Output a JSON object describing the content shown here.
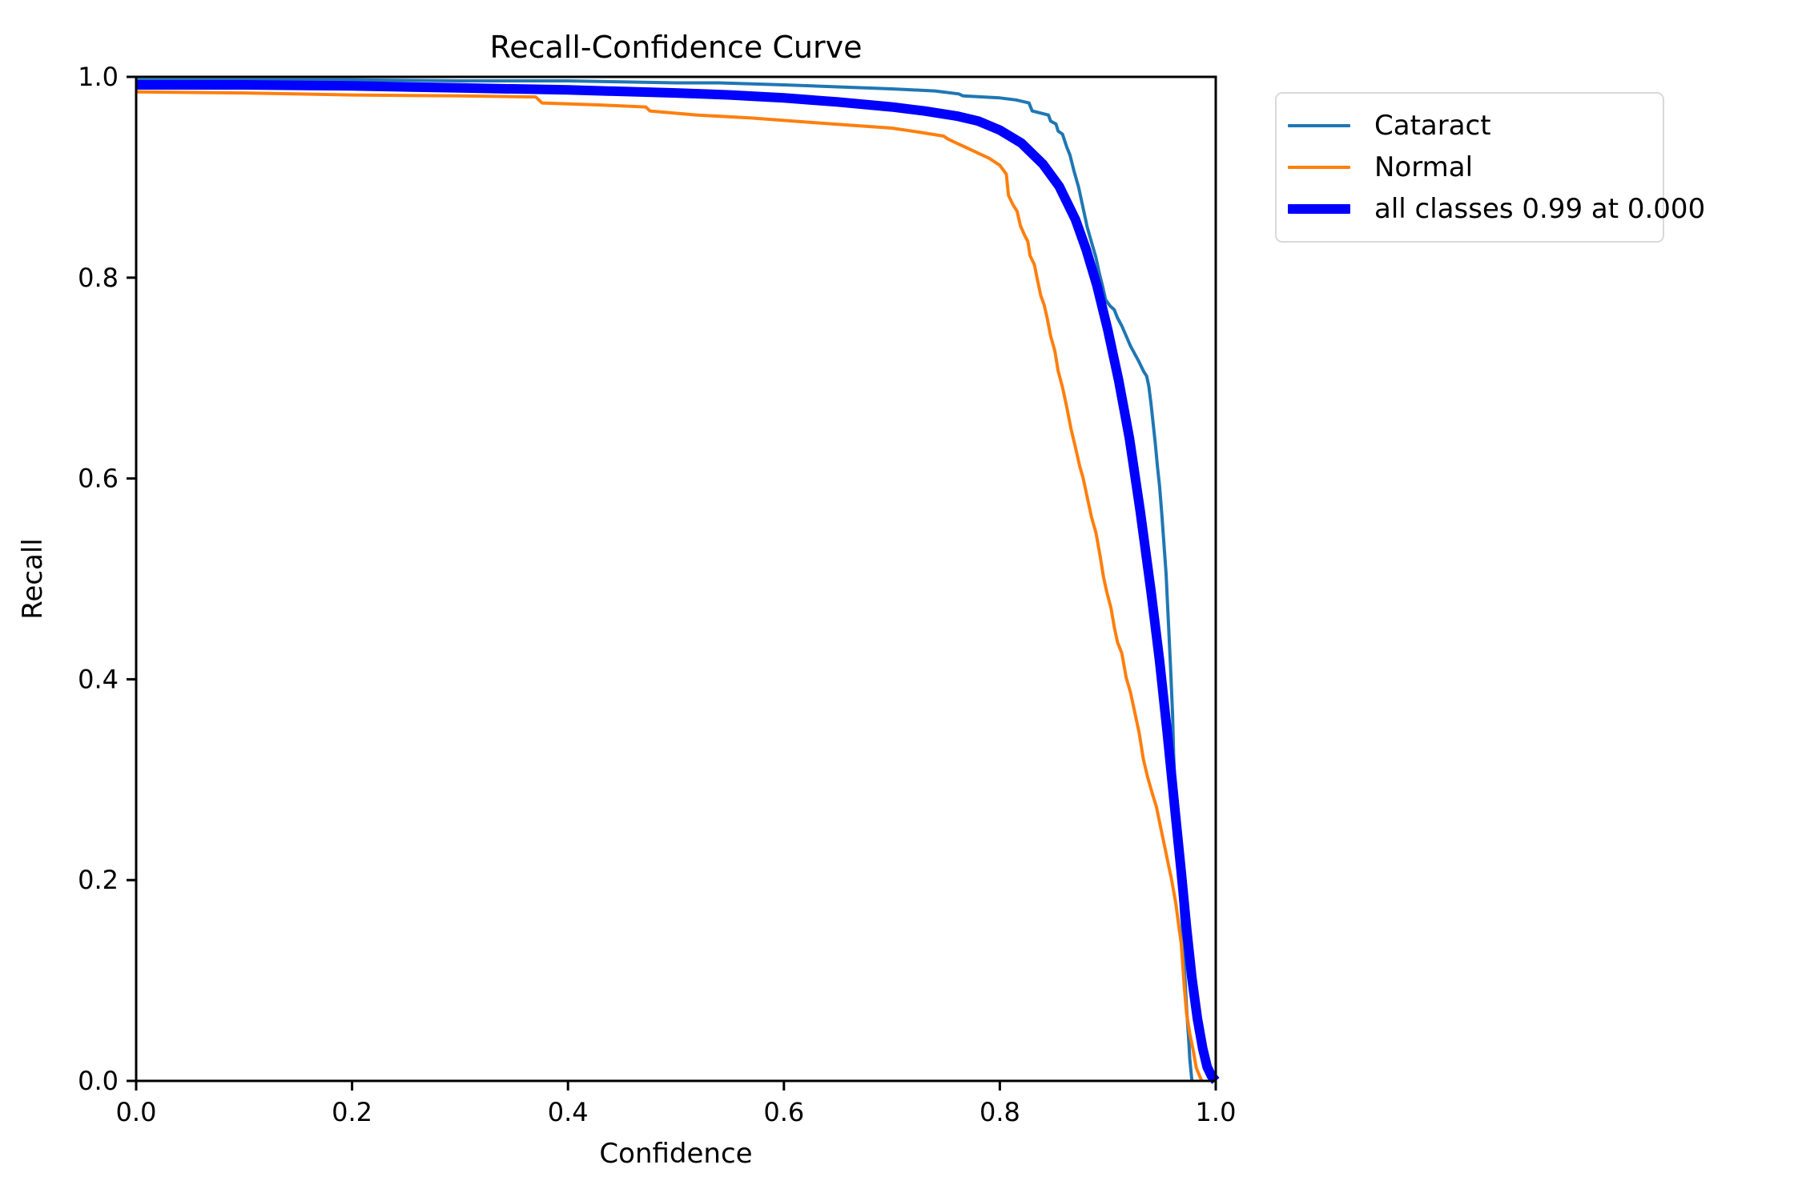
{
  "figure": {
    "title": "Recall-Confidence Curve",
    "xlabel": "Confidence",
    "ylabel": "Recall"
  },
  "chart_data": {
    "type": "line",
    "title": "Recall-Confidence Curve",
    "xlabel": "Confidence",
    "ylabel": "Recall",
    "xlim": [
      0.0,
      1.0
    ],
    "ylim": [
      0.0,
      1.0
    ],
    "x_ticks": [
      "0.0",
      "0.2",
      "0.4",
      "0.6",
      "0.8",
      "1.0"
    ],
    "y_ticks": [
      "0.0",
      "0.2",
      "0.4",
      "0.6",
      "0.8",
      "1.0"
    ],
    "grid": false,
    "frame_color": "#000000",
    "legend_position": "outside-upper-right",
    "legend_border_color": "#d9d9d9",
    "series": [
      {
        "name": "Cataract",
        "slug": "cataract",
        "color": "#1f77b4",
        "line_width": 4,
        "points": [
          [
            0.0,
            0.997
          ],
          [
            0.1,
            0.997
          ],
          [
            0.2,
            0.997
          ],
          [
            0.3,
            0.996
          ],
          [
            0.4,
            0.996
          ],
          [
            0.45,
            0.995
          ],
          [
            0.5,
            0.994
          ],
          [
            0.54,
            0.994
          ],
          [
            0.6,
            0.992
          ],
          [
            0.65,
            0.99
          ],
          [
            0.7,
            0.988
          ],
          [
            0.74,
            0.986
          ],
          [
            0.762,
            0.983
          ],
          [
            0.766,
            0.981
          ],
          [
            0.8,
            0.979
          ],
          [
            0.815,
            0.977
          ],
          [
            0.827,
            0.974
          ],
          [
            0.83,
            0.966
          ],
          [
            0.845,
            0.962
          ],
          [
            0.847,
            0.956
          ],
          [
            0.852,
            0.953
          ],
          [
            0.854,
            0.946
          ],
          [
            0.858,
            0.943
          ],
          [
            0.862,
            0.93
          ],
          [
            0.865,
            0.922
          ],
          [
            0.869,
            0.905
          ],
          [
            0.873,
            0.89
          ],
          [
            0.877,
            0.87
          ],
          [
            0.881,
            0.85
          ],
          [
            0.885,
            0.835
          ],
          [
            0.889,
            0.82
          ],
          [
            0.892,
            0.805
          ],
          [
            0.895,
            0.792
          ],
          [
            0.898,
            0.778
          ],
          [
            0.902,
            0.772
          ],
          [
            0.906,
            0.768
          ],
          [
            0.909,
            0.76
          ],
          [
            0.913,
            0.752
          ],
          [
            0.917,
            0.742
          ],
          [
            0.921,
            0.732
          ],
          [
            0.925,
            0.724
          ],
          [
            0.929,
            0.716
          ],
          [
            0.933,
            0.707
          ],
          [
            0.936,
            0.702
          ],
          [
            0.938,
            0.692
          ],
          [
            0.94,
            0.675
          ],
          [
            0.942,
            0.655
          ],
          [
            0.944,
            0.635
          ],
          [
            0.946,
            0.612
          ],
          [
            0.948,
            0.592
          ],
          [
            0.95,
            0.565
          ],
          [
            0.952,
            0.535
          ],
          [
            0.954,
            0.505
          ],
          [
            0.956,
            0.46
          ],
          [
            0.958,
            0.415
          ],
          [
            0.96,
            0.365
          ],
          [
            0.961,
            0.325
          ],
          [
            0.963,
            0.275
          ],
          [
            0.965,
            0.232
          ],
          [
            0.967,
            0.19
          ],
          [
            0.969,
            0.152
          ],
          [
            0.971,
            0.112
          ],
          [
            0.973,
            0.072
          ],
          [
            0.975,
            0.04
          ],
          [
            0.976,
            0.022
          ],
          [
            0.977,
            0.01
          ],
          [
            0.978,
            0.0
          ]
        ]
      },
      {
        "name": "Normal",
        "slug": "normal",
        "color": "#ff7f0e",
        "line_width": 4,
        "points": [
          [
            0.0,
            0.985
          ],
          [
            0.1,
            0.984
          ],
          [
            0.2,
            0.982
          ],
          [
            0.3,
            0.981
          ],
          [
            0.37,
            0.98
          ],
          [
            0.376,
            0.974
          ],
          [
            0.43,
            0.972
          ],
          [
            0.472,
            0.97
          ],
          [
            0.476,
            0.966
          ],
          [
            0.52,
            0.962
          ],
          [
            0.57,
            0.959
          ],
          [
            0.62,
            0.955
          ],
          [
            0.66,
            0.952
          ],
          [
            0.7,
            0.949
          ],
          [
            0.725,
            0.945
          ],
          [
            0.748,
            0.941
          ],
          [
            0.752,
            0.938
          ],
          [
            0.76,
            0.934
          ],
          [
            0.77,
            0.929
          ],
          [
            0.78,
            0.924
          ],
          [
            0.79,
            0.919
          ],
          [
            0.8,
            0.912
          ],
          [
            0.806,
            0.903
          ],
          [
            0.808,
            0.882
          ],
          [
            0.812,
            0.873
          ],
          [
            0.816,
            0.866
          ],
          [
            0.819,
            0.852
          ],
          [
            0.823,
            0.842
          ],
          [
            0.826,
            0.836
          ],
          [
            0.828,
            0.822
          ],
          [
            0.832,
            0.813
          ],
          [
            0.835,
            0.797
          ],
          [
            0.838,
            0.782
          ],
          [
            0.841,
            0.773
          ],
          [
            0.844,
            0.759
          ],
          [
            0.847,
            0.742
          ],
          [
            0.851,
            0.727
          ],
          [
            0.854,
            0.707
          ],
          [
            0.858,
            0.691
          ],
          [
            0.862,
            0.671
          ],
          [
            0.866,
            0.649
          ],
          [
            0.87,
            0.631
          ],
          [
            0.874,
            0.612
          ],
          [
            0.877,
            0.601
          ],
          [
            0.881,
            0.581
          ],
          [
            0.885,
            0.561
          ],
          [
            0.889,
            0.546
          ],
          [
            0.893,
            0.522
          ],
          [
            0.896,
            0.502
          ],
          [
            0.899,
            0.487
          ],
          [
            0.903,
            0.471
          ],
          [
            0.906,
            0.452
          ],
          [
            0.909,
            0.437
          ],
          [
            0.913,
            0.426
          ],
          [
            0.917,
            0.402
          ],
          [
            0.921,
            0.387
          ],
          [
            0.925,
            0.367
          ],
          [
            0.929,
            0.347
          ],
          [
            0.933,
            0.32
          ],
          [
            0.937,
            0.302
          ],
          [
            0.941,
            0.287
          ],
          [
            0.945,
            0.273
          ],
          [
            0.949,
            0.252
          ],
          [
            0.953,
            0.232
          ],
          [
            0.956,
            0.216
          ],
          [
            0.959,
            0.201
          ],
          [
            0.963,
            0.177
          ],
          [
            0.966,
            0.152
          ],
          [
            0.968,
            0.137
          ],
          [
            0.971,
            0.092
          ],
          [
            0.973,
            0.067
          ],
          [
            0.976,
            0.047
          ],
          [
            0.979,
            0.031
          ],
          [
            0.982,
            0.013
          ],
          [
            0.985,
            0.005
          ],
          [
            0.987,
            0.0
          ]
        ]
      },
      {
        "name": "all classes 0.99 at 0.000",
        "slug": "all-classes",
        "color": "#0000ff",
        "line_width": 12,
        "points": [
          [
            0.0,
            0.992
          ],
          [
            0.1,
            0.992
          ],
          [
            0.2,
            0.991
          ],
          [
            0.3,
            0.989
          ],
          [
            0.4,
            0.987
          ],
          [
            0.5,
            0.984
          ],
          [
            0.55,
            0.982
          ],
          [
            0.6,
            0.979
          ],
          [
            0.65,
            0.975
          ],
          [
            0.7,
            0.97
          ],
          [
            0.73,
            0.966
          ],
          [
            0.76,
            0.961
          ],
          [
            0.78,
            0.956
          ],
          [
            0.8,
            0.947
          ],
          [
            0.82,
            0.934
          ],
          [
            0.84,
            0.913
          ],
          [
            0.855,
            0.891
          ],
          [
            0.87,
            0.858
          ],
          [
            0.88,
            0.828
          ],
          [
            0.89,
            0.792
          ],
          [
            0.9,
            0.748
          ],
          [
            0.91,
            0.698
          ],
          [
            0.92,
            0.64
          ],
          [
            0.93,
            0.568
          ],
          [
            0.94,
            0.488
          ],
          [
            0.948,
            0.418
          ],
          [
            0.955,
            0.348
          ],
          [
            0.962,
            0.272
          ],
          [
            0.968,
            0.208
          ],
          [
            0.973,
            0.152
          ],
          [
            0.978,
            0.102
          ],
          [
            0.983,
            0.062
          ],
          [
            0.988,
            0.032
          ],
          [
            0.992,
            0.014
          ],
          [
            0.996,
            0.005
          ],
          [
            1.0,
            0.0
          ]
        ]
      }
    ]
  }
}
